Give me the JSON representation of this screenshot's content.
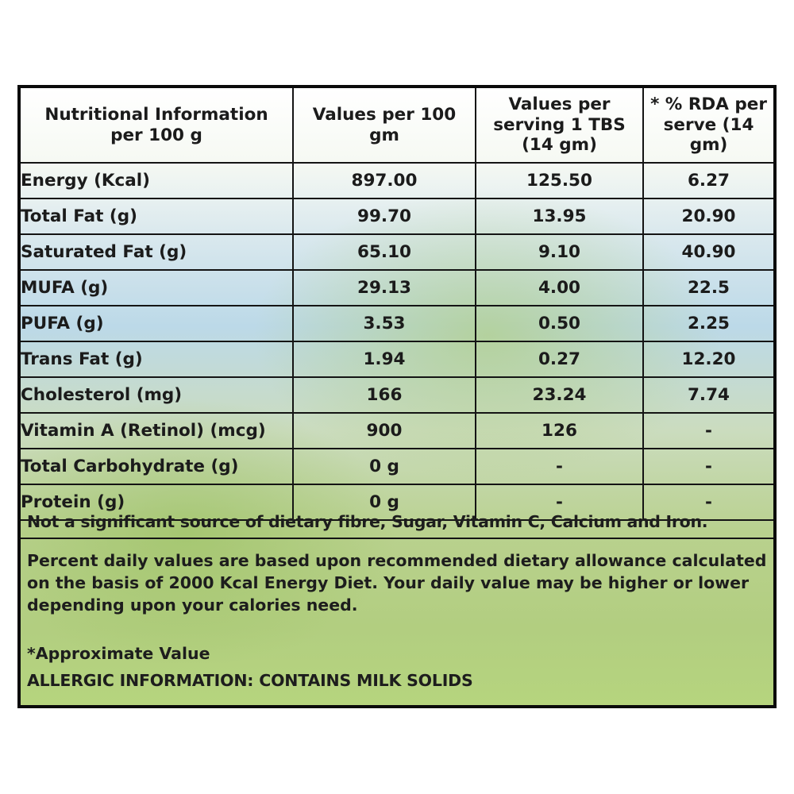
{
  "headers": {
    "col1": [
      "Nutritional Information",
      "per 100 g"
    ],
    "col2": [
      "Values per 100",
      "gm"
    ],
    "col3": [
      "Values per",
      "serving 1 TBS",
      "(14 gm)"
    ],
    "col4": [
      "* % RDA per",
      "serve (14 gm)"
    ]
  },
  "rows": [
    {
      "name": "Energy (Kcal)",
      "per100": "897.00",
      "serving": "125.50",
      "rda": "6.27"
    },
    {
      "name": "Total Fat (g)",
      "per100": "99.70",
      "serving": "13.95",
      "rda": "20.90"
    },
    {
      "name": "Saturated Fat (g)",
      "per100": "65.10",
      "serving": "9.10",
      "rda": "40.90"
    },
    {
      "name": "MUFA (g)",
      "per100": "29.13",
      "serving": "4.00",
      "rda": "22.5"
    },
    {
      "name": "PUFA (g)",
      "per100": "3.53",
      "serving": "0.50",
      "rda": "2.25"
    },
    {
      "name": "Trans Fat (g)",
      "per100": "1.94",
      "serving": "0.27",
      "rda": "12.20"
    },
    {
      "name": "Cholesterol (mg)",
      "per100": "166",
      "serving": "23.24",
      "rda": "7.74"
    },
    {
      "name": "Vitamin A (Retinol) (mcg)",
      "per100": "900",
      "serving": "126",
      "rda": "-"
    },
    {
      "name": "Total Carbohydrate (g)",
      "per100": "0 g",
      "serving": "-",
      "rda": "-"
    },
    {
      "name": "Protein (g)",
      "per100": "0 g",
      "serving": "-",
      "rda": "-"
    }
  ],
  "notes": {
    "significant": "Not a significant source of dietary fibre, Sugar, Vitamin C, Calcium and Iron.",
    "percent_daily": "Percent daily values are based upon recommended dietary allowance calculated on the basis of 2000 Kcal Energy Diet. Your daily value may be higher or lower depending upon your calories need.",
    "approximate": "*Approximate Value",
    "allergy": "ALLERGIC INFORMATION: CONTAINS MILK SOLIDS"
  }
}
